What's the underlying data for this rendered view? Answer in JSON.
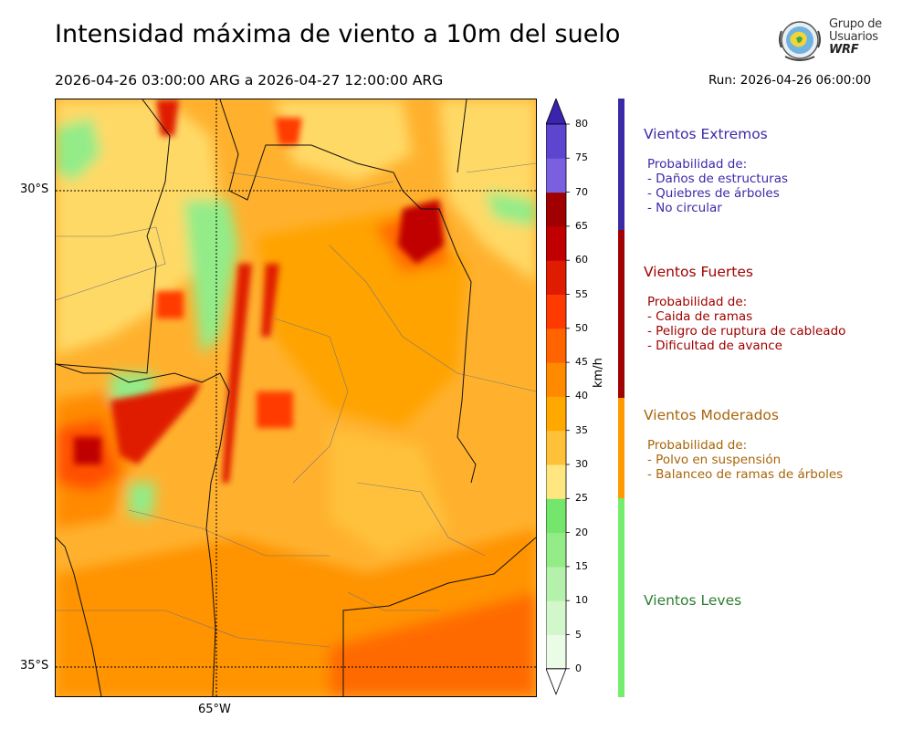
{
  "header": {
    "title": "Intensidad máxima de viento a 10m del suelo",
    "period": "2026-04-26 03:00:00 ARG  a  2026-04-27 12:00:00 ARG",
    "run": "Run: 2026-04-26 06:00:00"
  },
  "logo": {
    "line1": "Grupo de",
    "line2": "Usuarios",
    "line3": "WRF"
  },
  "map": {
    "lat_labels": [
      "30°S",
      "35°S"
    ],
    "lon_labels": [
      "65°W"
    ]
  },
  "colorbar": {
    "unit": "km/h",
    "ticks": [
      "0",
      "5",
      "10",
      "15",
      "20",
      "25",
      "30",
      "35",
      "40",
      "45",
      "50",
      "55",
      "60",
      "65",
      "70",
      "75",
      "80"
    ],
    "colors": [
      "#eafbe6",
      "#d2f7cb",
      "#b4f2ab",
      "#93ec88",
      "#74e66c",
      "#ffe680",
      "#ffc13a",
      "#ffa800",
      "#ff8a00",
      "#ff6400",
      "#ff3a00",
      "#e01c00",
      "#c00000",
      "#a00000",
      "#7a60e0",
      "#5e45cf",
      "#4530b8"
    ],
    "extend_top_color": "#3a23ad",
    "extend_bottom_color": "#ffffff"
  },
  "categories": [
    {
      "title": "Vientos Extremos",
      "color": "#3b2aa8",
      "lines": [
        "Probabilidad de:",
        "- Daños de estructuras",
        "- Quiebres de árboles",
        "- No circular"
      ]
    },
    {
      "title": "Vientos Fuertes",
      "color": "#a00000",
      "lines": [
        "Probabilidad de:",
        "- Caida de ramas",
        "- Peligro de ruptura de cableado",
        "- Dificultad de avance"
      ]
    },
    {
      "title": "Vientos Moderados",
      "color": "#a8650a",
      "lines": [
        "Probabilidad de:",
        "- Polvo en suspensión",
        "- Balanceo de ramas de árboles"
      ]
    },
    {
      "title": "Vientos Leves",
      "color": "#2e7d32",
      "lines": []
    }
  ],
  "category_bar_colors": [
    "#3b2aa8",
    "#a00000",
    "#ff9a00",
    "#74ec6c"
  ]
}
